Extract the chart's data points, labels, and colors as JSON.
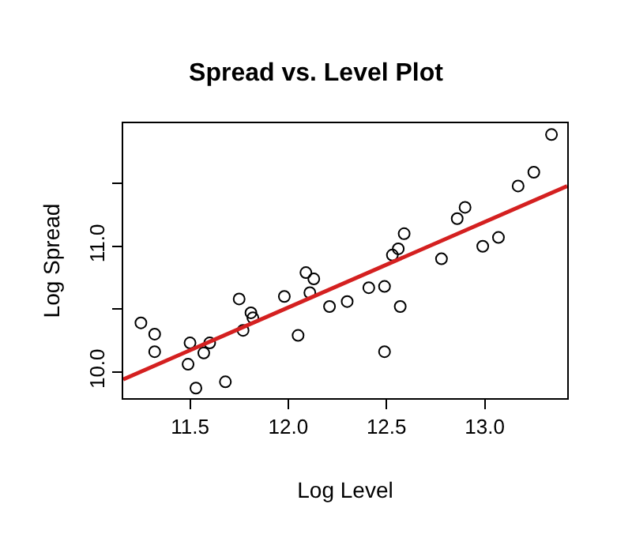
{
  "chart_data": {
    "type": "scatter",
    "title": "Spread vs. Level Plot",
    "xlabel": "Log Level",
    "ylabel": "Log Spread",
    "xlim": [
      11.16,
      13.42
    ],
    "ylim": [
      9.79,
      11.98
    ],
    "xticks": [
      11.5,
      {
        "value": 12.0,
        "label": "12.0"
      },
      12.5,
      {
        "value": 13.0,
        "label": "13.0"
      }
    ],
    "yticks": [
      {
        "value": 10.0,
        "label": "10.0"
      },
      {
        "value": 10.5,
        "label": null
      },
      {
        "value": 11.0,
        "label": "11.0"
      },
      {
        "value": 11.5,
        "label": null
      }
    ],
    "grid": false,
    "legend": false,
    "series": [
      {
        "color": "#000000",
        "marker": "circle",
        "x": [
          11.25,
          11.32,
          11.32,
          11.5,
          11.49,
          11.53,
          11.57,
          11.6,
          11.68,
          11.75,
          11.81,
          11.82,
          11.77,
          11.98,
          12.05,
          12.09,
          12.13,
          12.11,
          12.21,
          12.3,
          12.41,
          12.49,
          12.49,
          12.53,
          12.56,
          12.59,
          12.57,
          12.78,
          12.86,
          12.9,
          12.99,
          13.07,
          13.17,
          13.25,
          13.34
        ],
        "values": [
          10.39,
          10.3,
          10.16,
          10.23,
          10.06,
          9.87,
          10.15,
          10.23,
          9.92,
          10.58,
          10.47,
          10.43,
          10.33,
          10.6,
          10.29,
          10.79,
          10.74,
          10.63,
          10.52,
          10.56,
          10.67,
          10.68,
          10.16,
          10.93,
          10.98,
          11.1,
          10.52,
          10.9,
          11.22,
          11.31,
          11.0,
          11.07,
          11.48,
          11.59,
          11.89
        ]
      },
      {
        "type": "line",
        "color": "#d42020",
        "line_style": "solid",
        "x": [
          11.16,
          13.42
        ],
        "values": [
          9.94,
          11.48
        ]
      }
    ]
  }
}
